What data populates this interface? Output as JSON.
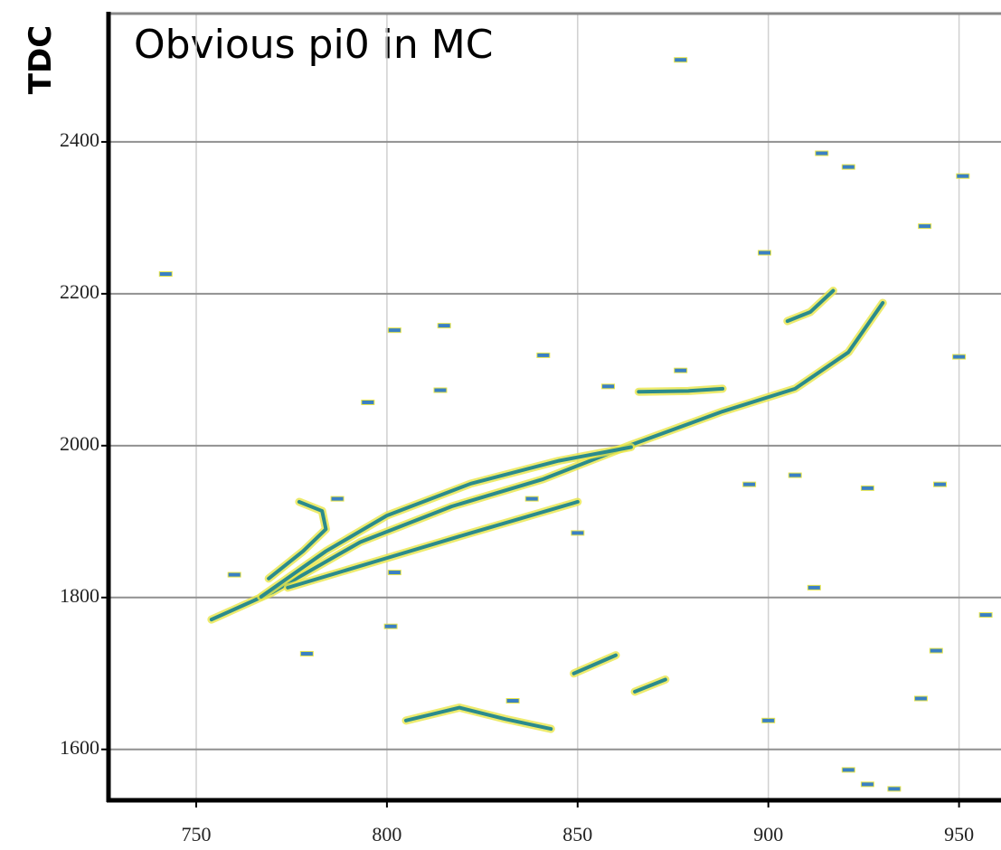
{
  "chart_data": {
    "type": "event-display",
    "title": "Obvious pi0 in MC",
    "y_label": "TDC",
    "xlim": [
      727,
      961
    ],
    "ylim": [
      1533,
      2569
    ],
    "xticks": [
      750,
      800,
      850,
      900,
      950
    ],
    "yticks": [
      1600,
      1800,
      2000,
      2200,
      2400
    ],
    "grid": true,
    "track_color": "#2b8b8c",
    "halo_color": "#e8e64a",
    "hit_color": "#3a80c4",
    "tracks": [
      {
        "x": [
          754,
          770,
          793,
          817,
          841,
          864,
          888,
          907,
          921,
          930
        ],
        "y": [
          1771,
          1807,
          1873,
          1920,
          1956,
          2001,
          2045,
          2075,
          2123,
          2188
        ]
      },
      {
        "x": [
          767,
          784,
          800,
          822,
          845,
          864
        ],
        "y": [
          1801,
          1861,
          1908,
          1950,
          1980,
          1998
        ]
      },
      {
        "x": [
          774,
          798,
          822,
          850
        ],
        "y": [
          1813,
          1849,
          1885,
          1926
        ]
      },
      {
        "x": [
          769,
          778,
          784,
          783,
          777
        ],
        "y": [
          1825,
          1861,
          1890,
          1914,
          1926
        ]
      },
      {
        "x": [
          905,
          911,
          917
        ],
        "y": [
          2164,
          2176,
          2204
        ]
      },
      {
        "x": [
          805,
          819,
          831,
          843
        ],
        "y": [
          1638,
          1655,
          1640,
          1627
        ]
      },
      {
        "x": [
          849,
          860
        ],
        "y": [
          1700,
          1724
        ]
      },
      {
        "x": [
          865,
          873
        ],
        "y": [
          1676,
          1692
        ]
      },
      {
        "x": [
          866,
          879,
          888
        ],
        "y": [
          2071,
          2072,
          2075
        ]
      }
    ],
    "hits": {
      "x": [
        742,
        877,
        914,
        921,
        941,
        951,
        899,
        802,
        815,
        841,
        877,
        814,
        858,
        795,
        907,
        926,
        945,
        895,
        760,
        787,
        802,
        838,
        850,
        912,
        779,
        801,
        957,
        940,
        900,
        921,
        926,
        933,
        833,
        944,
        950
      ],
      "y": [
        2226,
        2508,
        2385,
        2367,
        2289,
        2355,
        2254,
        2152,
        2158,
        2119,
        2099,
        2073,
        2078,
        2057,
        1961,
        1944,
        1949,
        1949,
        1830,
        1930,
        1833,
        1930,
        1885,
        1813,
        1726,
        1762,
        1777,
        1667,
        1638,
        1573,
        1554,
        1548,
        1664,
        1730,
        2117
      ]
    }
  }
}
